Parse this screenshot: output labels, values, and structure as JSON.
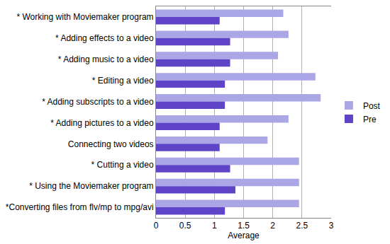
{
  "chart_data": {
    "type": "bar",
    "orientation": "horizontal",
    "categories": [
      "* Working with Moviemaker program",
      "* Adding effects to a video",
      "* Adding music to a video",
      "* Editing a video",
      "* Adding subscripts to a video",
      "* Adding pictures to a video",
      "Connecting two videos",
      "* Cutting a video",
      "* Using the Moviemaker program",
      "*Converting files from flv/mp to mpg/avi"
    ],
    "series": [
      {
        "name": "Post",
        "color": "#aba7e6",
        "values": [
          2.18,
          2.27,
          2.09,
          2.73,
          2.82,
          2.27,
          1.91,
          2.45,
          2.45,
          2.45
        ]
      },
      {
        "name": "Pre",
        "color": "#5f44c8",
        "values": [
          1.09,
          1.27,
          1.27,
          1.18,
          1.18,
          1.09,
          1.09,
          1.27,
          1.36,
          1.18
        ]
      }
    ],
    "x_label": "Average",
    "xlim": [
      0,
      3
    ],
    "xticks": [
      0,
      0.5,
      1,
      1.5,
      2,
      2.5,
      3
    ],
    "grid": true,
    "legend": "right"
  }
}
